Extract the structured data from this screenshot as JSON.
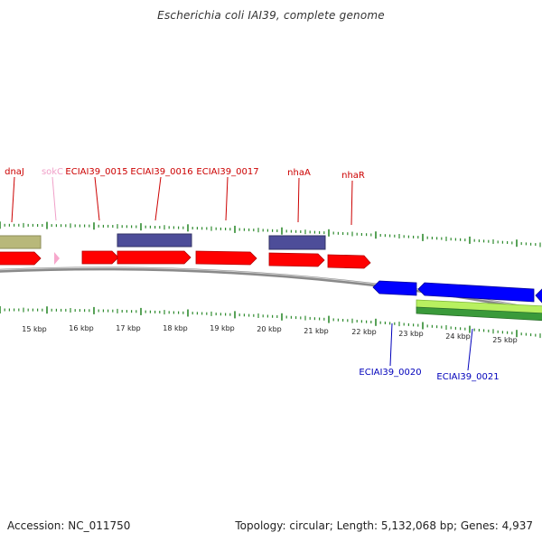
{
  "title": "Escherichia coli IAI39, complete genome",
  "accession_text": "Accession: NC_011750",
  "summary_text": "Topology: circular; Length: 5,132,068 bp; Genes: 4,937",
  "colors": {
    "tick": "#2e8b2e",
    "backbone": "#8a8a8a",
    "forward_label": "#cc0000",
    "ncrna_label": "#f0a0c8",
    "reverse_label": "#0000bb",
    "olive": "#b8b87a",
    "navy": "#4d4d99",
    "red": "#ff0000",
    "pink": "#f7a8cc",
    "blue": "#0000ff",
    "lightgreen": "#b8f060",
    "darkgreen": "#3a9a3a"
  },
  "tick_labels": [
    "15 kbp",
    "16 kbp",
    "17 kbp",
    "18 kbp",
    "19 kbp",
    "20 kbp",
    "21 kbp",
    "22 kbp",
    "23 kbp",
    "24 kbp",
    "25 kbp"
  ],
  "forward_labels": [
    {
      "text": "dnaJ",
      "kind": "forward"
    },
    {
      "text": "sokC",
      "kind": "ncrna"
    },
    {
      "text": "ECIAI39_0015",
      "kind": "forward"
    },
    {
      "text": "ECIAI39_0016",
      "kind": "forward"
    },
    {
      "text": "ECIAI39_0017",
      "kind": "forward"
    },
    {
      "text": "nhaA",
      "kind": "forward"
    },
    {
      "text": "nhaR",
      "kind": "forward"
    }
  ],
  "reverse_labels": [
    {
      "text": "ECIAI39_0020",
      "kind": "reverse"
    },
    {
      "text": "ECIAI39_0021",
      "kind": "reverse"
    }
  ]
}
